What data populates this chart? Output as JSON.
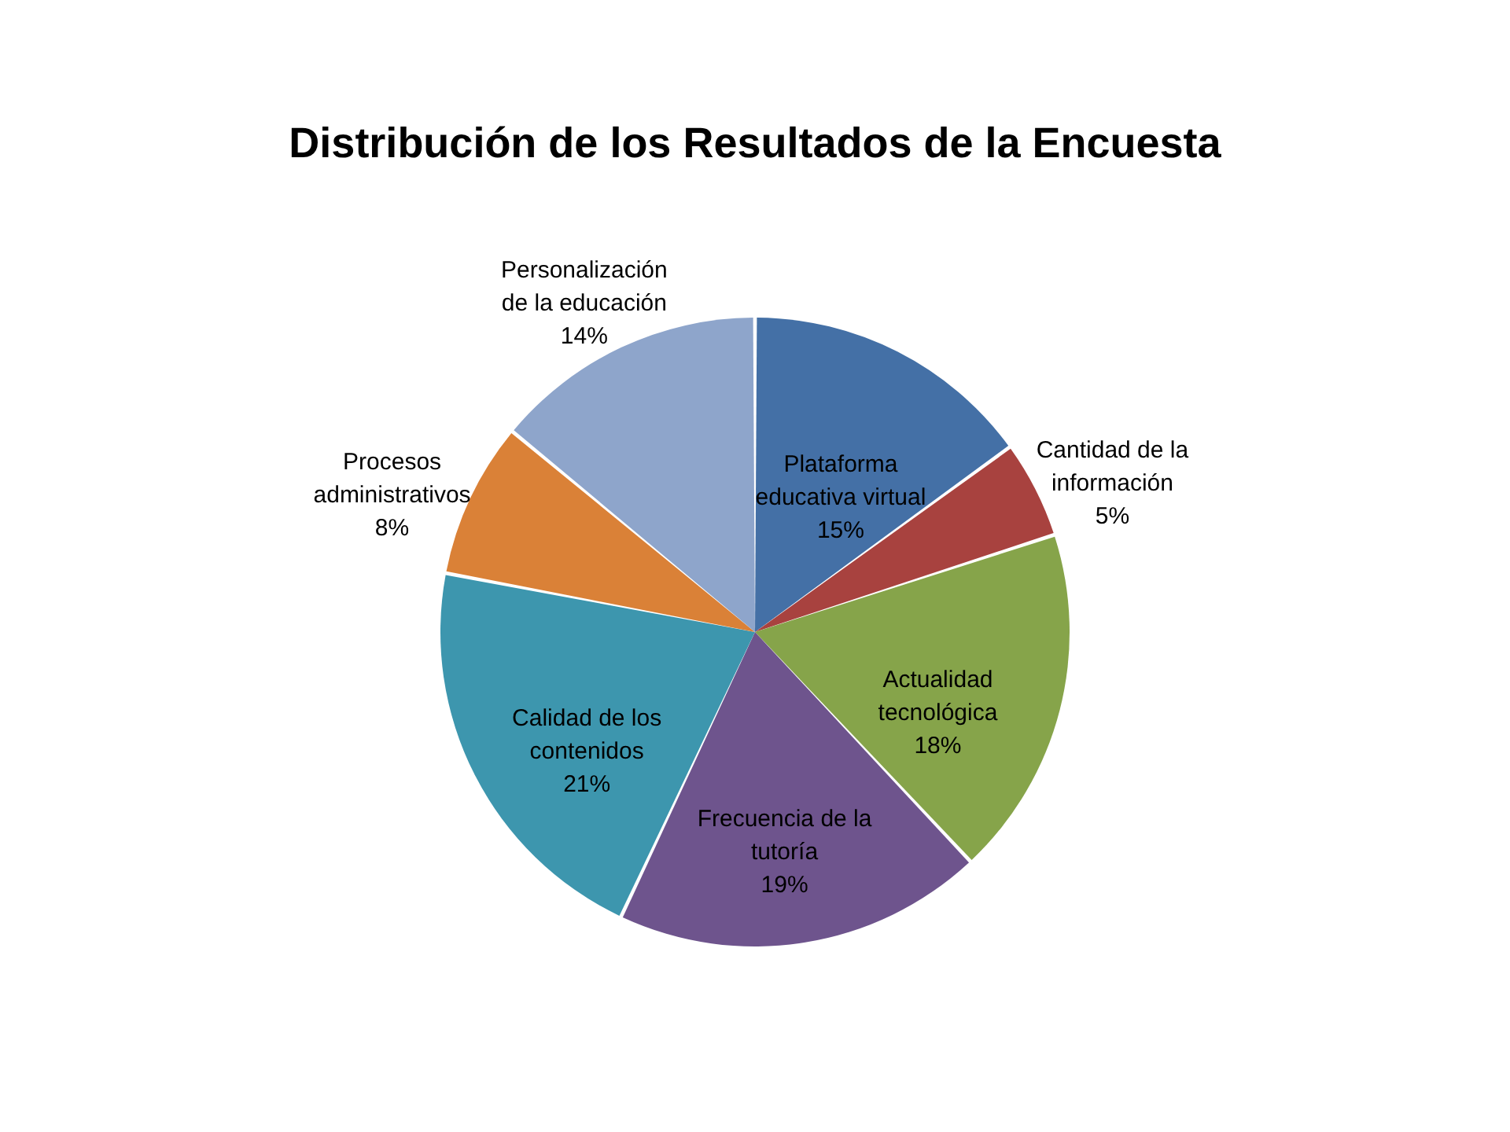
{
  "chart_data": {
    "type": "pie",
    "title": "Distribución de los Resultados de la Encuesta",
    "categories": [
      "Plataforma educativa virtual",
      "Cantidad de la información",
      "Actualidad tecnológica",
      "Frecuencia de la tutoría",
      "Calidad de los contenidos",
      "Procesos administrativos",
      "Personalización de la educación"
    ],
    "values": [
      15,
      5,
      18,
      19,
      21,
      8,
      14
    ],
    "colors": [
      "#4470a6",
      "#a8423f",
      "#86a44a",
      "#6e548d",
      "#3d96ae",
      "#da8137",
      "#8ea5cb"
    ],
    "value_labels": [
      "15%",
      "5%",
      "18%",
      "19%",
      "21%",
      "8%",
      "14%"
    ]
  }
}
